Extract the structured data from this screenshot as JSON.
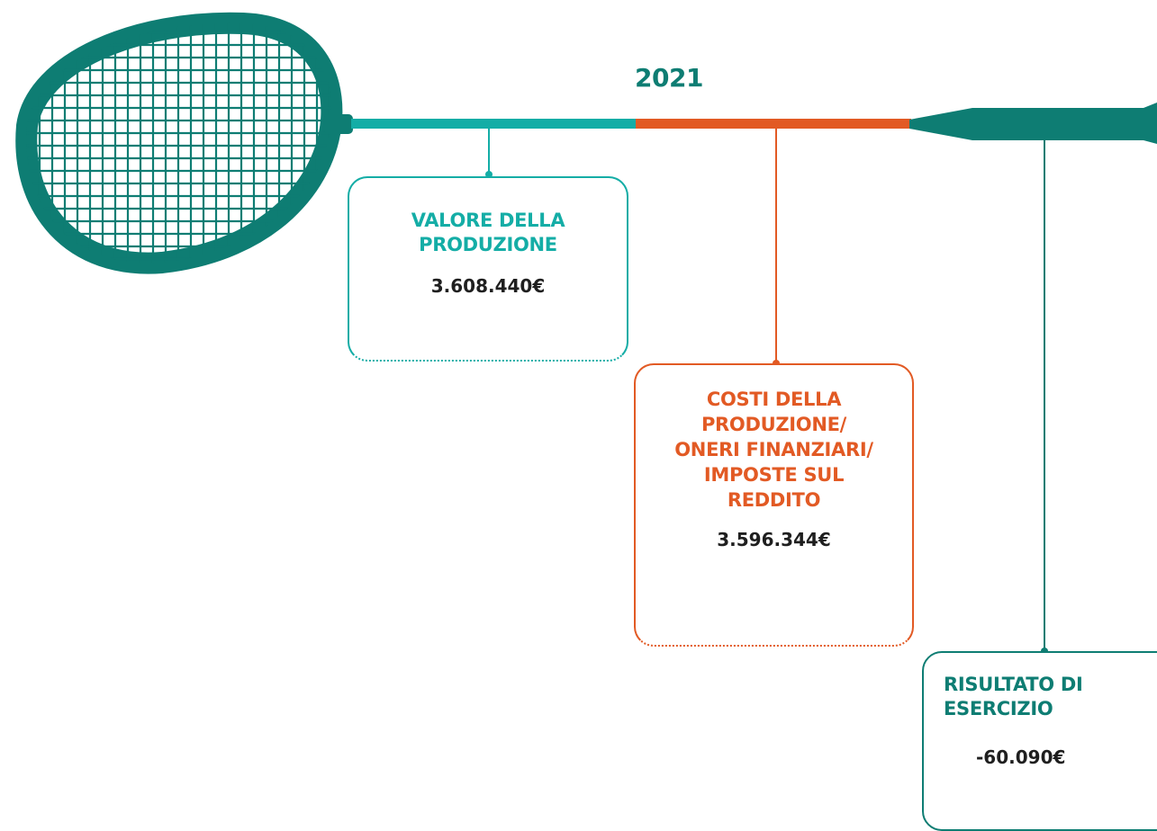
{
  "year": "2021",
  "colors": {
    "teal_light": "#14ada6",
    "orange": "#e25a24",
    "teal_dark": "#0e7d73"
  },
  "boxes": {
    "valore": {
      "title": "VALORE DELLA PRODUZIONE",
      "value": "3.608.440€"
    },
    "costi": {
      "title": "COSTI DELLA PRODUZIONE/ ONERI FINANZIARI/ IMPOSTE SUL REDDITO",
      "value": "3.596.344€"
    },
    "risultato": {
      "title": "RISULTATO DI ESERCIZIO",
      "value": "-60.090€"
    }
  },
  "illustration": {
    "icon": "badminton-racket-icon"
  }
}
